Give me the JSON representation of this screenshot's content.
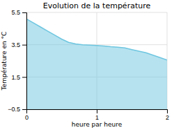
{
  "chart_data": {
    "type": "area",
    "title": "Evolution de la température",
    "xlabel": "heure par heure",
    "ylabel": "Température en °C",
    "x": [
      0.0,
      0.1,
      0.2,
      0.3,
      0.4,
      0.5,
      0.6,
      0.7,
      0.8,
      0.9,
      1.0,
      1.1,
      1.2,
      1.3,
      1.4,
      1.5,
      1.6,
      1.7,
      1.8,
      1.9,
      2.0
    ],
    "values": [
      5.1,
      4.85,
      4.6,
      4.35,
      4.1,
      3.85,
      3.65,
      3.55,
      3.5,
      3.48,
      3.45,
      3.42,
      3.38,
      3.35,
      3.3,
      3.2,
      3.1,
      3.0,
      2.85,
      2.7,
      2.55
    ],
    "xlim": [
      0,
      2
    ],
    "ylim": [
      -0.5,
      5.5
    ],
    "xticks": [
      0,
      1,
      2
    ],
    "yticks": [
      -0.5,
      1.5,
      3.5,
      5.5
    ],
    "color": "#6ec6e0",
    "grid": true
  }
}
